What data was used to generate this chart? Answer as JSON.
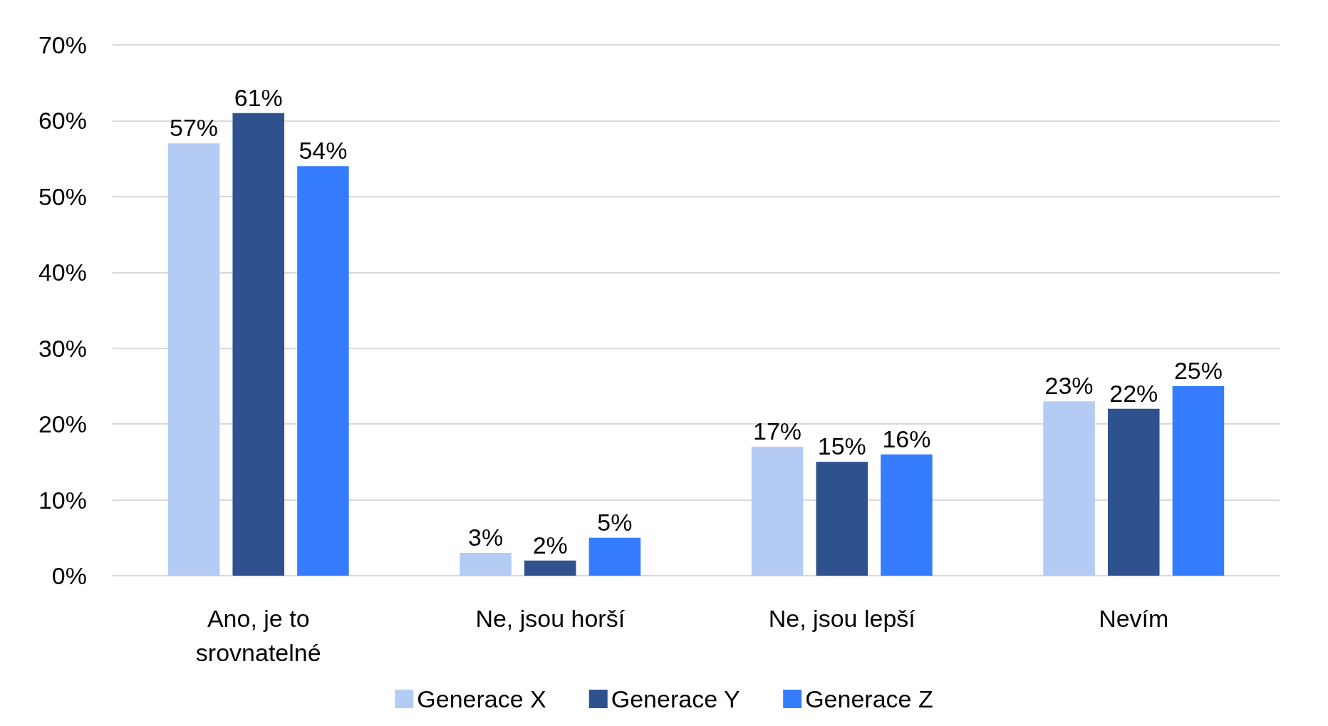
{
  "chart_data": {
    "type": "bar",
    "categories": [
      "Ano, je to\nsrovnatelné",
      "Ne, jsou horší",
      "Ne, jsou lepší",
      "Nevím"
    ],
    "series": [
      {
        "name": "Generace X",
        "color": "#b4cbf3",
        "values": [
          57,
          3,
          17,
          23
        ],
        "value_labels": [
          "57%",
          "3%",
          "17%",
          "23%"
        ]
      },
      {
        "name": "Generace Y",
        "color": "#2f528f",
        "values": [
          61,
          2,
          15,
          22
        ],
        "value_labels": [
          "61%",
          "2%",
          "15%",
          "22%"
        ]
      },
      {
        "name": "Generace Z",
        "color": "#357cff",
        "values": [
          54,
          5,
          16,
          25
        ],
        "value_labels": [
          "54%",
          "5%",
          "16%",
          "25%"
        ]
      }
    ],
    "ylim": [
      0,
      70
    ],
    "yticks": [
      {
        "value": 0,
        "label": "0%"
      },
      {
        "value": 10,
        "label": "10%"
      },
      {
        "value": 20,
        "label": "20%"
      },
      {
        "value": 30,
        "label": "30%"
      },
      {
        "value": 40,
        "label": "40%"
      },
      {
        "value": 50,
        "label": "50%"
      },
      {
        "value": 60,
        "label": "60%"
      },
      {
        "value": 70,
        "label": "70%"
      }
    ],
    "grid": "y",
    "legend": "bottom"
  }
}
